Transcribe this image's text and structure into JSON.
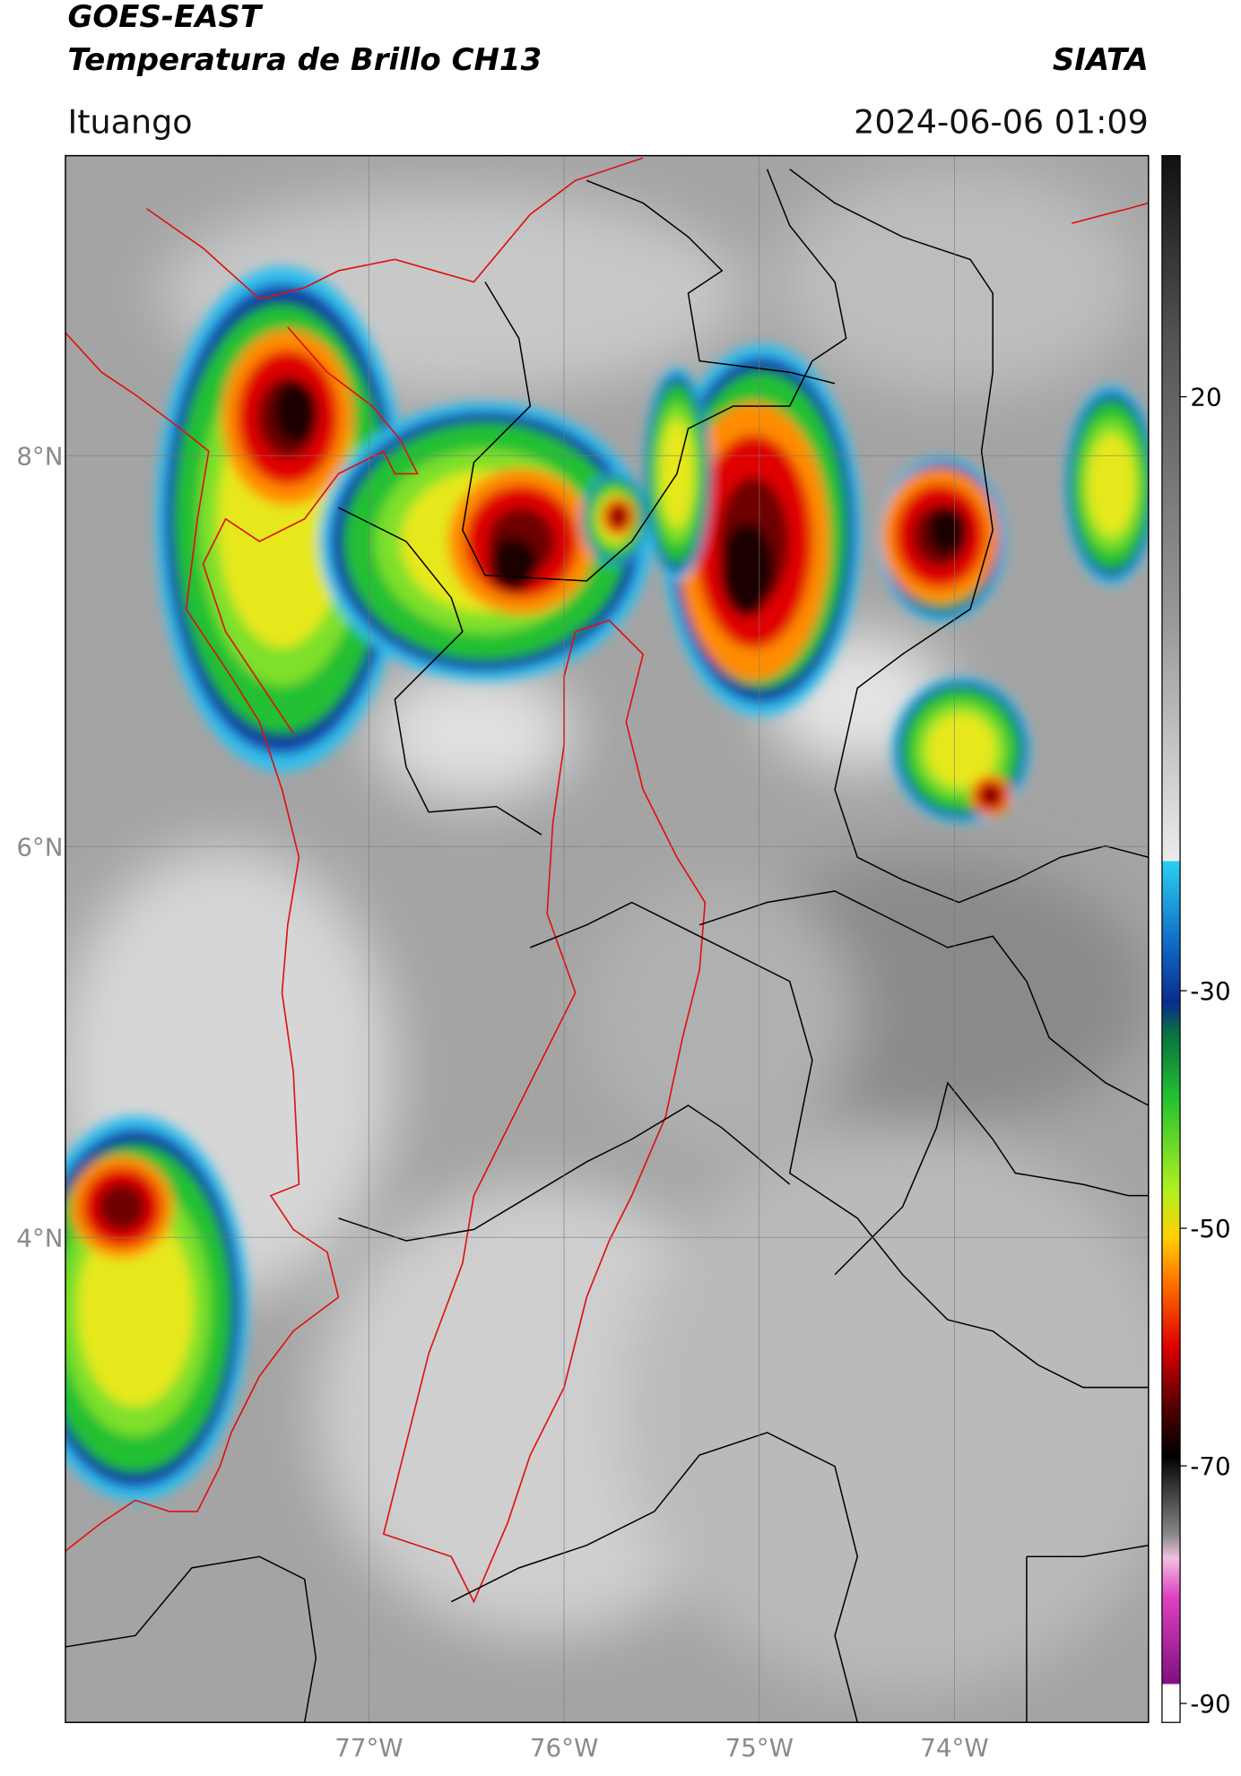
{
  "header": {
    "title": "GOES-EAST",
    "subtitle": "Temperatura de Brillo CH13",
    "brand": "SIATA",
    "region": "Ituango",
    "datetime": "2024-06-06 01:09"
  },
  "map": {
    "lon_range": [
      -78.555,
      -73.006
    ],
    "lat_range": [
      1.518,
      9.535
    ],
    "lat_ticks": [
      {
        "value": 8,
        "label": "8°N"
      },
      {
        "value": 6,
        "label": "6°N"
      },
      {
        "value": 4,
        "label": "4°N"
      }
    ],
    "lon_ticks": [
      {
        "value": -77,
        "label": "77°W"
      },
      {
        "value": -76,
        "label": "76°W"
      },
      {
        "value": -75,
        "label": "75°W"
      },
      {
        "value": -74,
        "label": "74°W"
      }
    ],
    "grid": true
  },
  "colorbar": {
    "range": [
      -91.6,
      40.3
    ],
    "ticks": [
      20,
      -30,
      -50,
      -70,
      -90
    ]
  }
}
